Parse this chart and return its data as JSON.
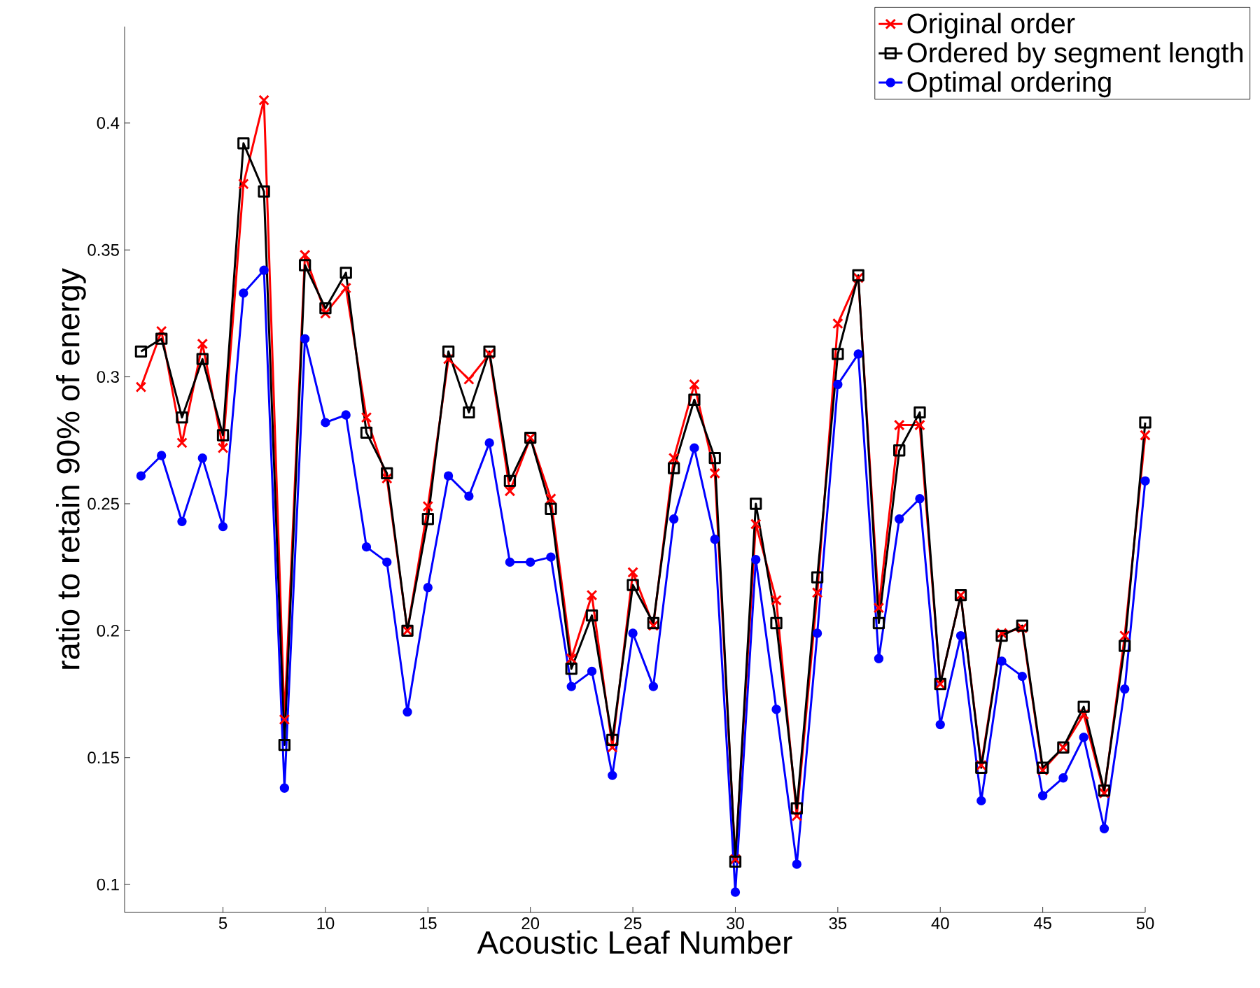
{
  "chart_data": {
    "type": "line",
    "xlabel": "Acoustic Leaf Number",
    "ylabel": "ratio to retain 90% of energy",
    "x": [
      1,
      2,
      3,
      4,
      5,
      6,
      7,
      8,
      9,
      10,
      11,
      12,
      13,
      14,
      15,
      16,
      17,
      18,
      19,
      20,
      21,
      22,
      23,
      24,
      25,
      26,
      27,
      28,
      29,
      30,
      31,
      32,
      33,
      34,
      35,
      36,
      37,
      38,
      39,
      40,
      41,
      42,
      43,
      44,
      45,
      46,
      47,
      48,
      49,
      50
    ],
    "series": [
      {
        "name": "Original order",
        "color": "#ff0000",
        "marker": "cross",
        "values": [
          0.296,
          0.318,
          0.274,
          0.313,
          0.272,
          0.376,
          0.409,
          0.165,
          0.348,
          0.325,
          0.335,
          0.284,
          0.26,
          0.2,
          0.249,
          0.307,
          0.299,
          0.309,
          0.255,
          0.276,
          0.252,
          0.189,
          0.214,
          0.154,
          0.223,
          0.202,
          0.268,
          0.297,
          0.262,
          0.11,
          0.242,
          0.212,
          0.127,
          0.215,
          0.321,
          0.339,
          0.209,
          0.281,
          0.281,
          0.179,
          0.214,
          0.147,
          0.199,
          0.201,
          0.145,
          0.154,
          0.167,
          0.136,
          0.198,
          0.277
        ]
      },
      {
        "name": "Ordered by segment length",
        "color": "#000000",
        "marker": "square",
        "values": [
          0.31,
          0.315,
          0.284,
          0.307,
          0.277,
          0.392,
          0.373,
          0.155,
          0.344,
          0.327,
          0.341,
          0.278,
          0.262,
          0.2,
          0.244,
          0.31,
          0.286,
          0.31,
          0.259,
          0.276,
          0.248,
          0.185,
          0.206,
          0.157,
          0.218,
          0.203,
          0.264,
          0.291,
          0.268,
          0.109,
          0.25,
          0.203,
          0.13,
          0.221,
          0.309,
          0.34,
          0.203,
          0.271,
          0.286,
          0.179,
          0.214,
          0.146,
          0.198,
          0.202,
          0.146,
          0.154,
          0.17,
          0.137,
          0.194,
          0.282
        ]
      },
      {
        "name": "Optimal ordering",
        "color": "#0000ff",
        "marker": "circle",
        "values": [
          0.261,
          0.269,
          0.243,
          0.268,
          0.241,
          0.333,
          0.342,
          0.138,
          0.315,
          0.282,
          0.285,
          0.233,
          0.227,
          0.168,
          0.217,
          0.261,
          0.253,
          0.274,
          0.227,
          0.227,
          0.229,
          0.178,
          0.184,
          0.143,
          0.199,
          0.178,
          0.244,
          0.272,
          0.236,
          0.097,
          0.228,
          0.169,
          0.108,
          0.199,
          0.297,
          0.309,
          0.189,
          0.244,
          0.252,
          0.163,
          0.198,
          0.133,
          0.188,
          0.182,
          0.135,
          0.142,
          0.158,
          0.122,
          0.177,
          0.259
        ]
      }
    ],
    "xlim": [
      0.2,
      50
    ],
    "ylim": [
      0.089,
      0.438
    ],
    "xticks": [
      5,
      10,
      15,
      20,
      25,
      30,
      35,
      40,
      45,
      50
    ],
    "yticks": [
      0.1,
      0.15,
      0.2,
      0.25,
      0.3,
      0.35,
      0.4
    ],
    "legend": "top right",
    "grid": false,
    "line_style": "solid"
  }
}
